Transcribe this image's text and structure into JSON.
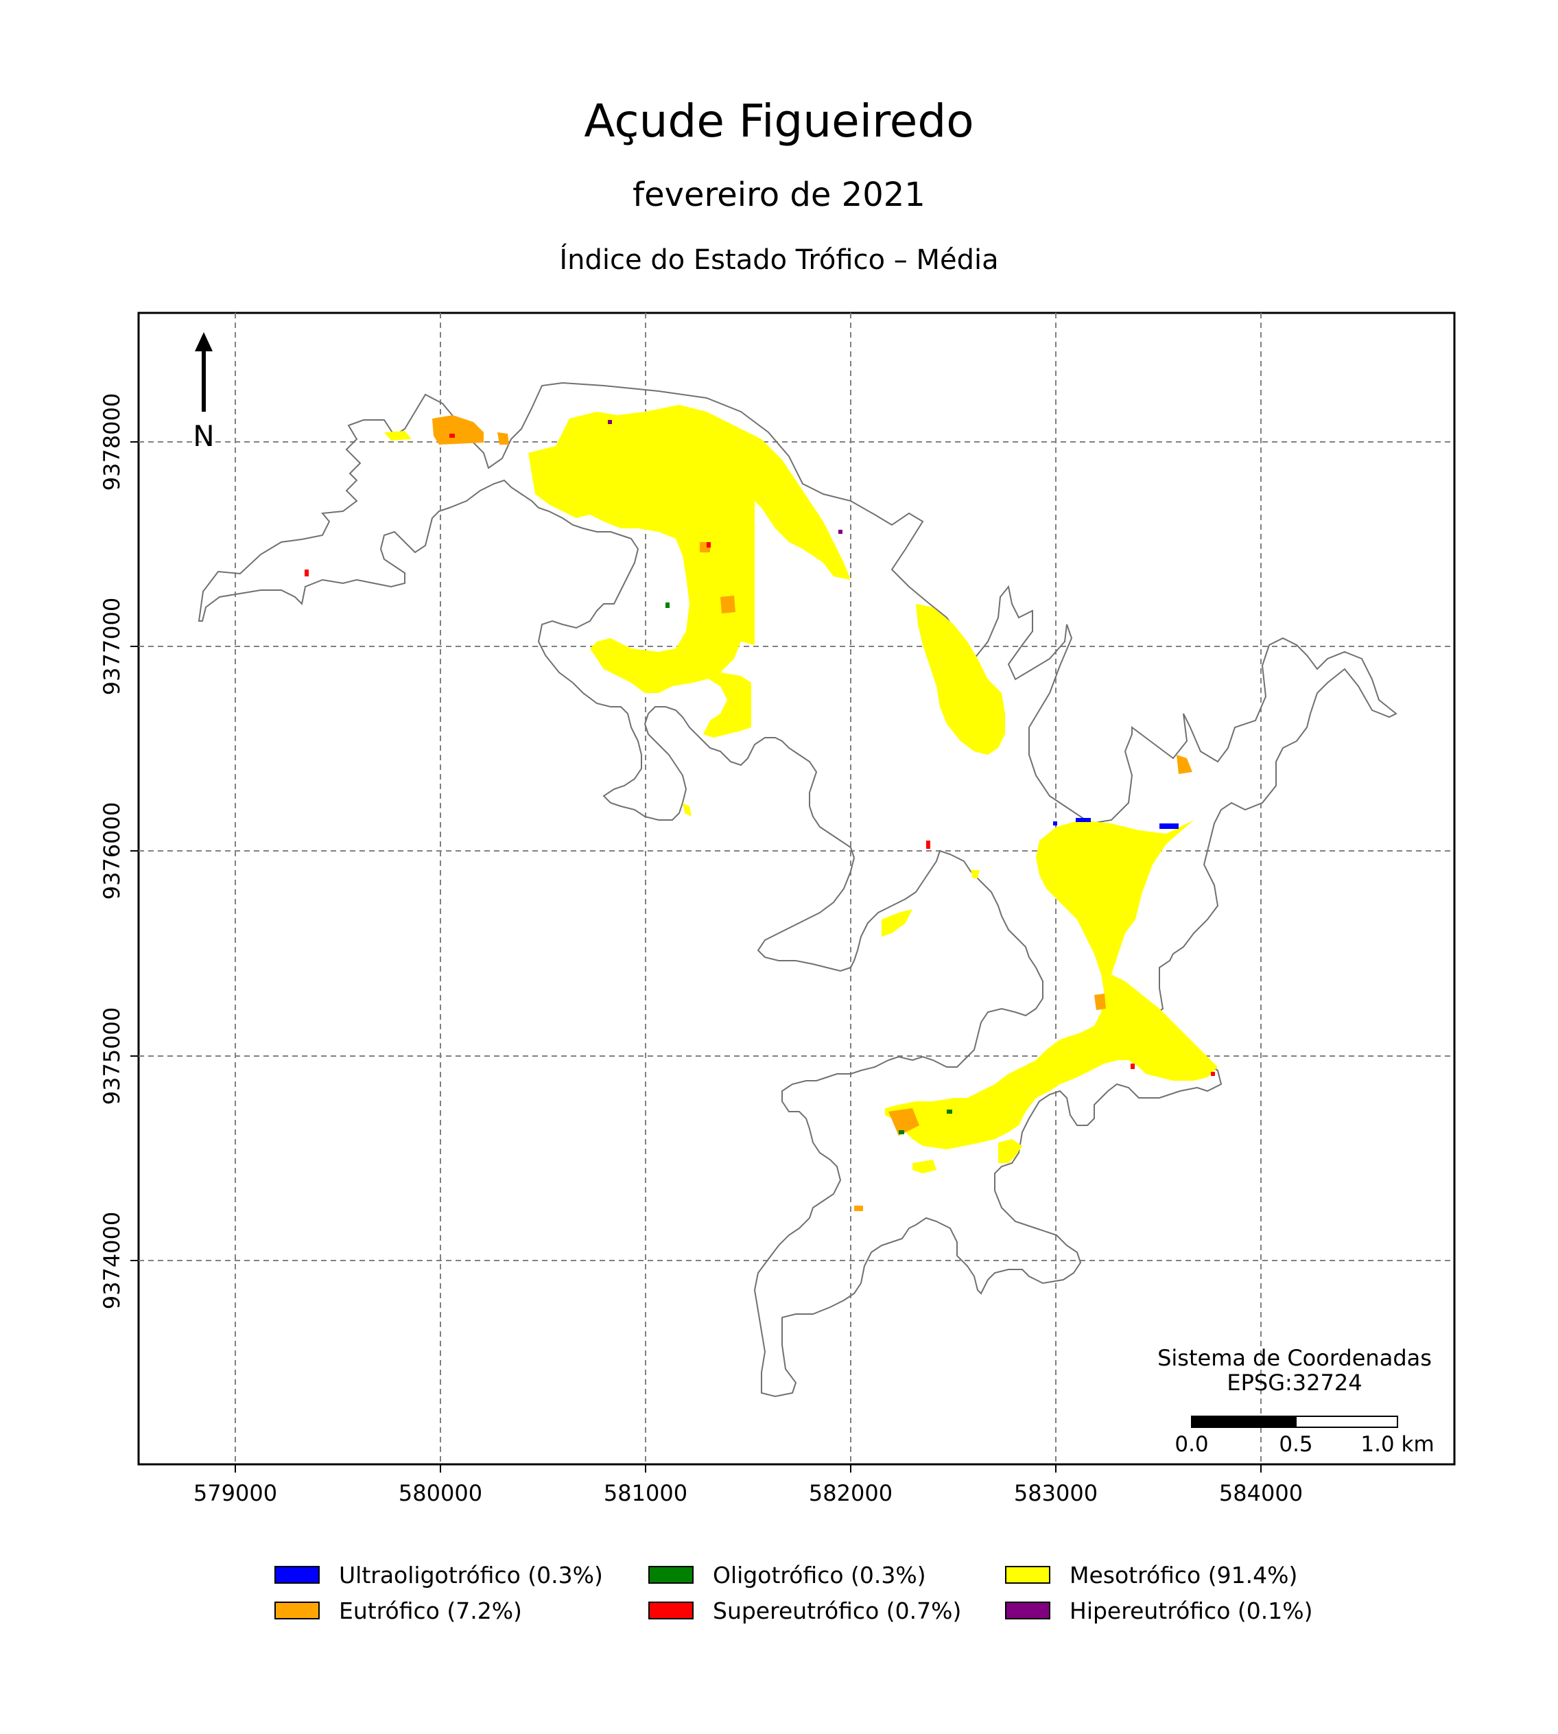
{
  "title": "Açude Figueiredo",
  "subtitle": "fevereiro de 2021",
  "index_title": "Índice do Estado Trófico – Média",
  "north_label": "N",
  "crs": {
    "line1": "Sistema de Coordenadas",
    "line2": "EPSG:32724"
  },
  "scalebar": {
    "labels": [
      "0.0",
      "0.5",
      "1.0 km"
    ]
  },
  "axes": {
    "x_ticks": [
      "579000",
      "580000",
      "581000",
      "582000",
      "583000",
      "584000"
    ],
    "y_ticks": [
      "9374000",
      "9375000",
      "9376000",
      "9377000",
      "9378000"
    ],
    "grid": true
  },
  "legend": [
    {
      "label": "Ultraoligotrófico (0.3%)",
      "color": "#0000ff"
    },
    {
      "label": "Oligotrófico (0.3%)",
      "color": "#008000"
    },
    {
      "label": "Mesotrófico (91.4%)",
      "color": "#ffff00"
    },
    {
      "label": "Eutrófico (7.2%)",
      "color": "#ffa500"
    },
    {
      "label": "Supereutrófico (0.7%)",
      "color": "#ff0000"
    },
    {
      "label": "Hipereutrófico (0.1%)",
      "color": "#800080"
    }
  ],
  "colors": {
    "shoreline": "#707070",
    "grid": "#808080",
    "water_main": "#ffff00",
    "water_secondary": "#ffa500"
  }
}
